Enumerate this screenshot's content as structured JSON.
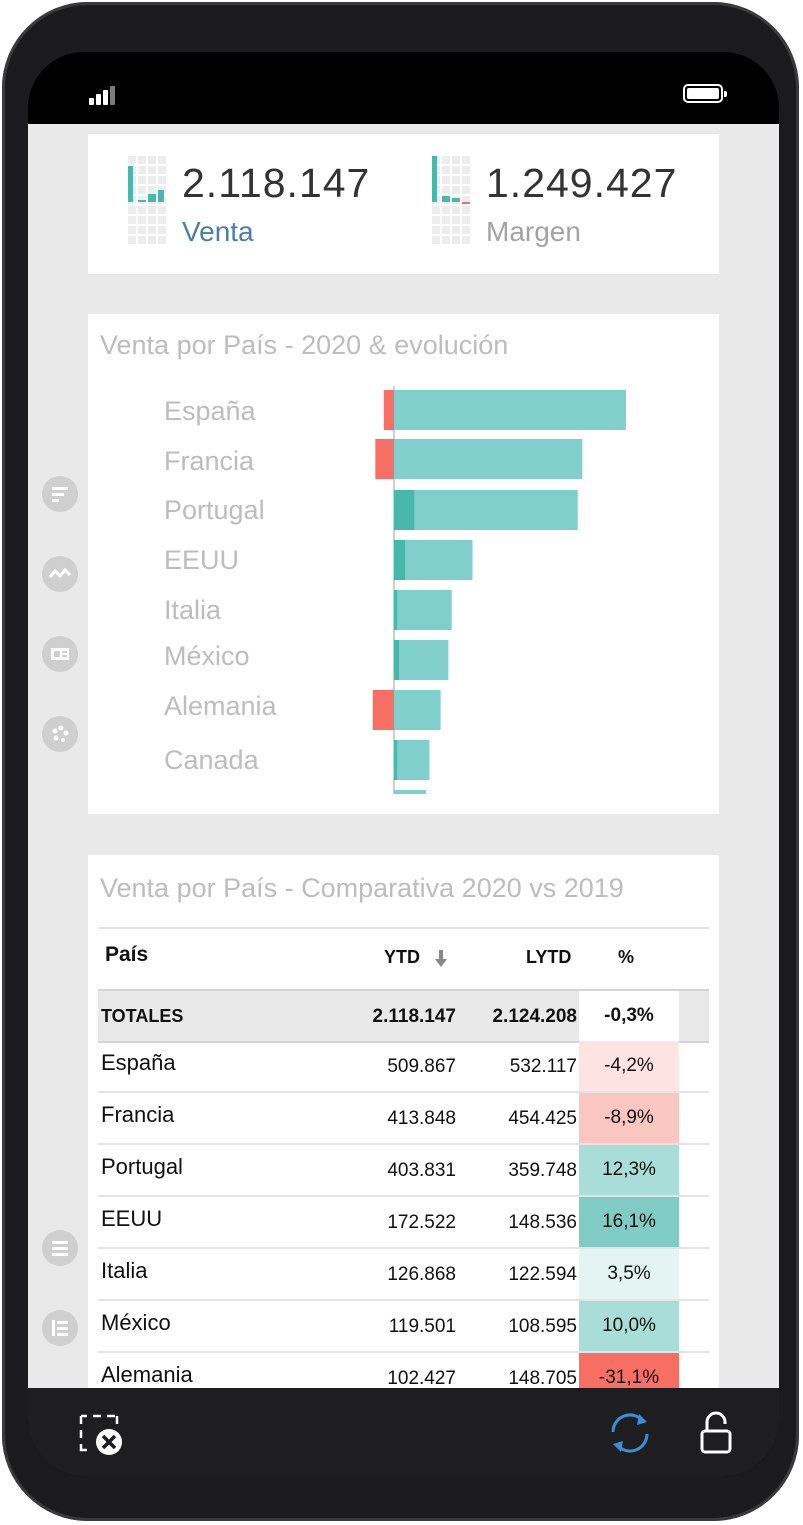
{
  "kpis": [
    {
      "value": "2.118.147",
      "label": "Venta",
      "label_color": "#4a7fa4"
    },
    {
      "value": "1.249.427",
      "label": "Margen",
      "label_color": "#a3a3a3"
    }
  ],
  "bar_card": {
    "title": "Venta por País - 2020 & evolución"
  },
  "chart_data": {
    "type": "bar",
    "title": "Venta por País - 2020 & evolución",
    "orientation": "horizontal",
    "categories": [
      "España",
      "Francia",
      "Portugal",
      "EEUU",
      "Italia",
      "México",
      "Alemania",
      "Canada"
    ],
    "series": [
      {
        "values": [
          509867,
          413848,
          403831,
          172522,
          126868,
          119501,
          102427,
          78000
        ]
      }
    ],
    "evolution_values": [
      -22250,
      -40577,
      44083,
      23986,
      4274,
      10906,
      -46278,
      5000
    ],
    "colors": {
      "bar": "#81cfcd",
      "positive": "#47b8ab",
      "negative": "#f76f64",
      "label": "#bdbdbd"
    }
  },
  "table_card": {
    "title": "Venta por País - Comparativa 2020 vs 2019",
    "headers": {
      "country": "País",
      "ytd": "YTD",
      "lytd": "LYTD",
      "pct": "%"
    },
    "totals": {
      "name": "TOTALES",
      "ytd": "2.118.147",
      "lytd": "2.124.208",
      "pct": "-0,3%"
    },
    "rows": [
      {
        "name": "España",
        "ytd": "509.867",
        "lytd": "532.117",
        "pct": "-4,2%",
        "pct_value": -4.2
      },
      {
        "name": "Francia",
        "ytd": "413.848",
        "lytd": "454.425",
        "pct": "-8,9%",
        "pct_value": -8.9
      },
      {
        "name": "Portugal",
        "ytd": "403.831",
        "lytd": "359.748",
        "pct": "12,3%",
        "pct_value": 12.3
      },
      {
        "name": "EEUU",
        "ytd": "172.522",
        "lytd": "148.536",
        "pct": "16,1%",
        "pct_value": 16.1
      },
      {
        "name": "Italia",
        "ytd": "126.868",
        "lytd": "122.594",
        "pct": "3,5%",
        "pct_value": 3.5
      },
      {
        "name": "México",
        "ytd": "119.501",
        "lytd": "108.595",
        "pct": "10,0%",
        "pct_value": 10.0
      },
      {
        "name": "Alemania",
        "ytd": "102.427",
        "lytd": "148.705",
        "pct": "-31,1%",
        "pct_value": -31.1
      }
    ]
  },
  "icons": {
    "side": [
      "filter-icon",
      "trend-icon",
      "card-icon",
      "palette-icon",
      "list-icon",
      "table-icon"
    ],
    "bottom": [
      "clear-selection-icon",
      "refresh-icon",
      "unlock-icon"
    ]
  }
}
